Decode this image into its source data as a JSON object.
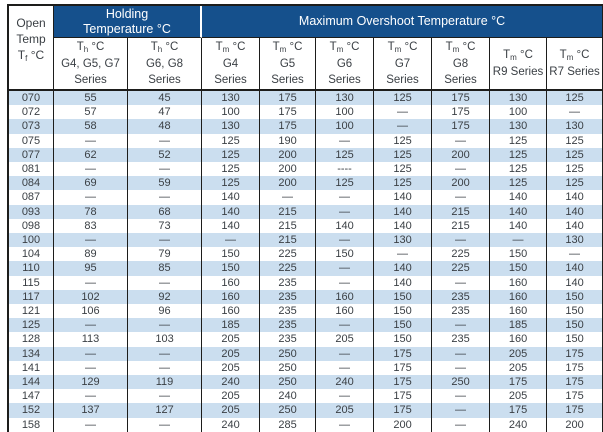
{
  "table": {
    "open_column": {
      "line1": "Open",
      "line2": "Temp",
      "symbol": "T",
      "symbol_sub": "f",
      "symbol_unit": " °C"
    },
    "groups": {
      "holding": {
        "line1": "Holding",
        "line2": "Temperature °C"
      },
      "overshoot": {
        "label": "Maximum Overshoot Temperature °C"
      }
    },
    "columns": [
      {
        "symbol": "T",
        "sub": "h",
        "unit": " °C",
        "line2": "G4, G5, G7",
        "line3": "Series"
      },
      {
        "symbol": "T",
        "sub": "h",
        "unit": " °C",
        "line2": "G6, G8",
        "line3": "Series"
      },
      {
        "symbol": "T",
        "sub": "m",
        "unit": " °C",
        "line2": "G4",
        "line3": "Series"
      },
      {
        "symbol": "T",
        "sub": "m",
        "unit": " °C",
        "line2": "G5",
        "line3": "Series"
      },
      {
        "symbol": "T",
        "sub": "m",
        "unit": " °C",
        "line2": "G6",
        "line3": "Series"
      },
      {
        "symbol": "T",
        "sub": "m",
        "unit": " °C",
        "line2": "G7",
        "line3": "Series"
      },
      {
        "symbol": "T",
        "sub": "m",
        "unit": " °C",
        "line2": "G8",
        "line3": "Series"
      },
      {
        "symbol": "T",
        "sub": "m",
        "unit": " °C",
        "line2": "R9 Series",
        "line3": ""
      },
      {
        "symbol": "T",
        "sub": "m",
        "unit": " °C",
        "line2": "R7 Series",
        "line3": ""
      }
    ],
    "rows": [
      [
        "070",
        "55",
        "45",
        "130",
        "175",
        "130",
        "125",
        "175",
        "130",
        "125"
      ],
      [
        "072",
        "57",
        "47",
        "100",
        "175",
        "100",
        "—",
        "175",
        "100",
        "—"
      ],
      [
        "073",
        "58",
        "48",
        "130",
        "175",
        "100",
        "—",
        "175",
        "130",
        "130"
      ],
      [
        "075",
        "—",
        "—",
        "125",
        "190",
        "—",
        "125",
        "—",
        "125",
        "125"
      ],
      [
        "077",
        "62",
        "52",
        "125",
        "200",
        "125",
        "125",
        "200",
        "125",
        "125"
      ],
      [
        "081",
        "—",
        "—",
        "125",
        "200",
        "----",
        "125",
        "—",
        "125",
        "125"
      ],
      [
        "084",
        "69",
        "59",
        "125",
        "200",
        "125",
        "125",
        "200",
        "125",
        "125"
      ],
      [
        "087",
        "—",
        "—",
        "140",
        "—",
        "—",
        "140",
        "—",
        "140",
        "140"
      ],
      [
        "093",
        "78",
        "68",
        "140",
        "215",
        "—",
        "140",
        "215",
        "140",
        "140"
      ],
      [
        "098",
        "83",
        "73",
        "140",
        "215",
        "140",
        "140",
        "215",
        "140",
        "140"
      ],
      [
        "100",
        "—",
        "—",
        "—",
        "215",
        "—",
        "130",
        "—",
        "—",
        "130"
      ],
      [
        "104",
        "89",
        "79",
        "150",
        "225",
        "150",
        "—",
        "225",
        "150",
        "—"
      ],
      [
        "110",
        "95",
        "85",
        "150",
        "225",
        "—",
        "140",
        "225",
        "150",
        "140"
      ],
      [
        "115",
        "—",
        "—",
        "160",
        "235",
        "—",
        "140",
        "—",
        "160",
        "140"
      ],
      [
        "117",
        "102",
        "92",
        "160",
        "235",
        "160",
        "150",
        "235",
        "160",
        "150"
      ],
      [
        "121",
        "106",
        "96",
        "160",
        "235",
        "160",
        "150",
        "235",
        "160",
        "150"
      ],
      [
        "125",
        "—",
        "—",
        "185",
        "235",
        "—",
        "150",
        "—",
        "185",
        "150"
      ],
      [
        "128",
        "113",
        "103",
        "205",
        "235",
        "205",
        "150",
        "235",
        "160",
        "150"
      ],
      [
        "134",
        "—",
        "—",
        "205",
        "250",
        "—",
        "175",
        "—",
        "205",
        "175"
      ],
      [
        "141",
        "—",
        "—",
        "205",
        "250",
        "—",
        "175",
        "—",
        "205",
        "175"
      ],
      [
        "144",
        "129",
        "119",
        "240",
        "250",
        "240",
        "175",
        "250",
        "175",
        "175"
      ],
      [
        "147",
        "—",
        "—",
        "205",
        "240",
        "—",
        "175",
        "—",
        "205",
        "175"
      ],
      [
        "152",
        "137",
        "127",
        "205",
        "250",
        "205",
        "175",
        "—",
        "175",
        "175"
      ],
      [
        "158",
        "—",
        "—",
        "240",
        "285",
        "—",
        "200",
        "—",
        "240",
        "200"
      ]
    ]
  },
  "colors": {
    "header_navy": "#15508c",
    "row_alt_blue": "#cbdeef",
    "border_dark": "#1d1d1b",
    "text": "#3a3f44"
  }
}
